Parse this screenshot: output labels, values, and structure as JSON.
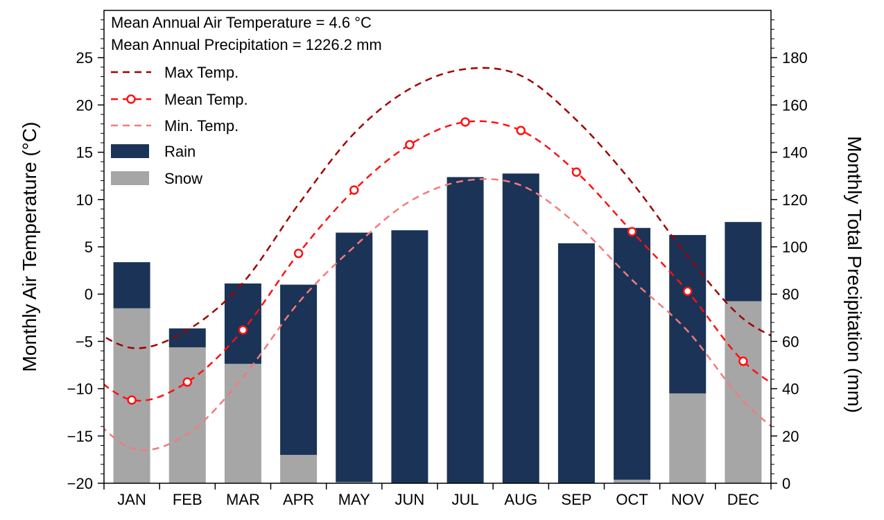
{
  "chart_data": {
    "type": "bar",
    "annotations": [
      "Mean Annual Air Temperature = 4.6 °C",
      "Mean Annual Precipitation = 1226.2 mm"
    ],
    "categories": [
      "JAN",
      "FEB",
      "MAR",
      "APR",
      "MAY",
      "JUN",
      "JUL",
      "AUG",
      "SEP",
      "OCT",
      "NOV",
      "DEC"
    ],
    "ylabel_left": "Monthly Air Temperature (°C)",
    "ylabel_right": "Monthly Total Precipitation (mm)",
    "ylim_left": [
      -20,
      30
    ],
    "ylim_right": [
      0,
      200
    ],
    "yticks_left": [
      -20,
      -15,
      -10,
      -5,
      0,
      5,
      10,
      15,
      20,
      25
    ],
    "yticks_right": [
      0,
      20,
      40,
      60,
      80,
      100,
      120,
      140,
      160,
      180
    ],
    "grid": false,
    "legend_position": "top-left",
    "bar_series": [
      {
        "name": "Rain",
        "color": "#1a3356",
        "values": [
          19.5,
          8.0,
          34.0,
          72.0,
          105.5,
          107.0,
          129.5,
          131.0,
          101.5,
          106.5,
          67.0,
          33.5
        ]
      },
      {
        "name": "Snow",
        "color": "#a6a6a6",
        "values": [
          74.0,
          57.5,
          50.5,
          12.0,
          0.5,
          0,
          0,
          0,
          0,
          1.5,
          38.0,
          77.0
        ]
      }
    ],
    "line_series": [
      {
        "name": "Max Temp.",
        "color": "#a00000",
        "style": "dashed",
        "values": [
          -5.7,
          -3.8,
          1.2,
          9.5,
          17.0,
          21.7,
          23.8,
          23.1,
          18.4,
          11.8,
          4.0,
          -2.6
        ]
      },
      {
        "name": "Mean Temp.",
        "color": "#ff1010",
        "style": "dashed-circle",
        "values": [
          -11.2,
          -9.3,
          -3.8,
          4.3,
          11.0,
          15.8,
          18.2,
          17.3,
          12.9,
          6.6,
          0.3,
          -7.1
        ]
      },
      {
        "name": "Min. Temp.",
        "color": "#f47a7a",
        "style": "dashed",
        "values": [
          -16.3,
          -14.8,
          -8.8,
          -0.9,
          5.0,
          9.8,
          12.0,
          11.5,
          7.4,
          1.5,
          -3.9,
          -11.3
        ]
      }
    ]
  }
}
